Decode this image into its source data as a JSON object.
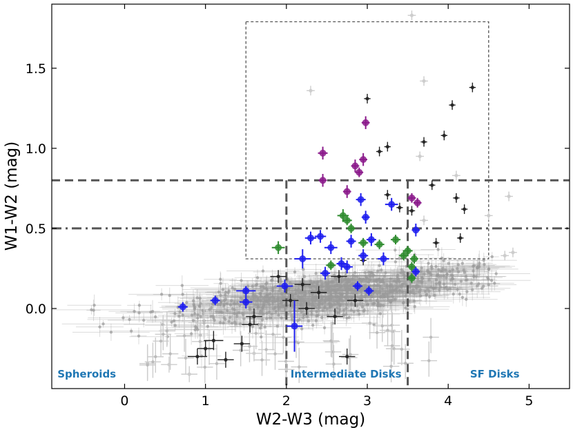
{
  "chart_data": {
    "type": "scatter",
    "title": "",
    "xlabel": "W2-W3 (mag)",
    "ylabel": "W1-W2 (mag)",
    "xlim": [
      -0.9,
      5.5
    ],
    "ylim": [
      -0.5,
      1.9
    ],
    "xticks": [
      0,
      1,
      2,
      3,
      4,
      5
    ],
    "xtick_labels": [
      "0",
      "1",
      "2",
      "3",
      "4",
      "5"
    ],
    "yticks": [
      0.0,
      0.5,
      1.0,
      1.5
    ],
    "ytick_labels": [
      "0.0",
      "0.5",
      "1.0",
      "1.5"
    ],
    "grid": false,
    "reference_lines": [
      {
        "name": "horizontal-dashed-0.8",
        "axis": "y",
        "value": 0.8,
        "style": "dashed",
        "color": "#555555"
      },
      {
        "name": "horizontal-dashdot-0.5",
        "axis": "y",
        "value": 0.5,
        "style": "dashdot",
        "color": "#555555"
      },
      {
        "name": "vertical-dashed-2.0",
        "axis": "x",
        "value": 2.0,
        "y_max": 0.8,
        "style": "dashed",
        "color": "#555555"
      },
      {
        "name": "vertical-dashed-3.5",
        "axis": "x",
        "value": 3.5,
        "y_max": 0.8,
        "style": "dashed",
        "color": "#555555"
      }
    ],
    "selection_box": {
      "x_range": [
        1.5,
        4.5
      ],
      "y_range": [
        0.31,
        1.79
      ],
      "style": "dotted",
      "color": "#555555"
    },
    "region_labels": [
      {
        "text": "Spheroids",
        "x": -0.83,
        "y": -0.43
      },
      {
        "text": "Intermediate Disks",
        "x": 2.05,
        "y": -0.43
      },
      {
        "text": "SF Disks",
        "x": 4.27,
        "y": -0.43
      }
    ],
    "region_label_color": "#1f77b4",
    "background_cloud": {
      "name": "all-galaxies",
      "color": "#9a9a9a",
      "center_x": 2.5,
      "center_y": 0.07,
      "x_range": [
        -0.5,
        4.6
      ],
      "y_range": [
        -0.15,
        0.35
      ]
    },
    "series": [
      {
        "name": "purple",
        "color": "#8b1a8b",
        "x": [
          2.45,
          2.45,
          2.75,
          2.85,
          2.9,
          2.95,
          2.98,
          3.55,
          3.62
        ],
        "y": [
          0.97,
          0.8,
          0.73,
          0.89,
          0.85,
          0.93,
          1.16,
          0.69,
          0.66
        ],
        "xerr": [
          0.06,
          0.05,
          0.05,
          0.05,
          0.05,
          0.05,
          0.05,
          0.05,
          0.05
        ],
        "yerr": [
          0.04,
          0.04,
          0.04,
          0.04,
          0.03,
          0.04,
          0.04,
          0.03,
          0.03
        ]
      },
      {
        "name": "green",
        "color": "#2e8b2e",
        "x": [
          1.9,
          2.55,
          2.7,
          2.75,
          2.8,
          2.95,
          3.15,
          3.35,
          3.45,
          3.5,
          3.55,
          3.58,
          3.55
        ],
        "y": [
          0.38,
          0.27,
          0.58,
          0.55,
          0.5,
          0.41,
          0.4,
          0.43,
          0.33,
          0.36,
          0.26,
          0.31,
          0.19
        ],
        "xerr": [
          0.08,
          0.06,
          0.07,
          0.06,
          0.05,
          0.06,
          0.06,
          0.06,
          0.06,
          0.06,
          0.05,
          0.05,
          0.05
        ],
        "yerr": [
          0.04,
          0.03,
          0.04,
          0.03,
          0.03,
          0.03,
          0.03,
          0.03,
          0.03,
          0.03,
          0.03,
          0.03,
          0.03
        ]
      },
      {
        "name": "blue",
        "color": "#1f1fef",
        "x": [
          0.72,
          1.12,
          1.5,
          1.5,
          1.98,
          2.1,
          2.2,
          2.3,
          2.42,
          2.48,
          2.55,
          2.68,
          2.75,
          2.8,
          2.88,
          2.92,
          2.95,
          2.98,
          3.02,
          3.05,
          3.2,
          3.3,
          3.6,
          3.6
        ],
        "y": [
          0.01,
          0.05,
          0.11,
          0.04,
          0.14,
          -0.11,
          0.31,
          0.44,
          0.45,
          0.22,
          0.38,
          0.28,
          0.26,
          0.42,
          0.14,
          0.68,
          0.33,
          0.57,
          0.11,
          0.43,
          0.31,
          0.65,
          0.49,
          0.23
        ],
        "xerr": [
          0.06,
          0.06,
          0.12,
          0.08,
          0.1,
          0.1,
          0.1,
          0.07,
          0.07,
          0.06,
          0.08,
          0.06,
          0.07,
          0.06,
          0.06,
          0.06,
          0.06,
          0.05,
          0.06,
          0.06,
          0.07,
          0.08,
          0.05,
          0.05
        ],
        "yerr": [
          0.03,
          0.03,
          0.03,
          0.04,
          0.04,
          0.16,
          0.06,
          0.04,
          0.04,
          0.04,
          0.04,
          0.04,
          0.04,
          0.04,
          0.03,
          0.04,
          0.04,
          0.04,
          0.03,
          0.04,
          0.04,
          0.04,
          0.04,
          0.03
        ]
      },
      {
        "name": "black",
        "color": "#222222",
        "x": [
          0.9,
          1.0,
          1.1,
          1.25,
          1.45,
          1.55,
          1.6,
          1.9,
          2.05,
          2.2,
          2.25,
          2.4,
          2.6,
          2.65,
          2.75,
          2.85,
          3.0,
          3.15,
          3.25,
          3.4,
          3.55,
          3.7,
          3.8,
          3.95,
          4.05,
          4.1,
          4.3,
          4.15,
          4.2,
          3.25,
          2.95,
          3.85
        ],
        "y": [
          -0.3,
          -0.25,
          -0.2,
          -0.32,
          -0.22,
          -0.1,
          -0.05,
          0.2,
          0.05,
          0.15,
          0.0,
          0.1,
          -0.05,
          0.2,
          -0.3,
          0.05,
          1.31,
          0.98,
          1.01,
          0.63,
          0.61,
          1.04,
          0.77,
          1.08,
          1.27,
          0.69,
          1.38,
          0.44,
          0.62,
          0.71,
          0.3,
          0.41
        ],
        "xerr": [
          0.12,
          0.1,
          0.12,
          0.1,
          0.1,
          0.1,
          0.1,
          0.1,
          0.1,
          0.1,
          0.1,
          0.1,
          0.1,
          0.1,
          0.1,
          0.1,
          0.04,
          0.04,
          0.04,
          0.04,
          0.04,
          0.04,
          0.04,
          0.04,
          0.04,
          0.04,
          0.04,
          0.04,
          0.04,
          0.04,
          0.04,
          0.04
        ],
        "yerr": [
          0.05,
          0.05,
          0.06,
          0.05,
          0.05,
          0.05,
          0.05,
          0.04,
          0.04,
          0.04,
          0.04,
          0.04,
          0.05,
          0.04,
          0.05,
          0.04,
          0.03,
          0.03,
          0.03,
          0.03,
          0.03,
          0.03,
          0.03,
          0.03,
          0.03,
          0.03,
          0.03,
          0.03,
          0.03,
          0.03,
          0.03,
          0.03
        ]
      },
      {
        "name": "light-gray-outliers",
        "color": "#cccccc",
        "x": [
          3.55,
          3.7,
          2.3,
          3.65,
          4.75,
          4.5,
          4.7,
          0.55,
          0.8,
          1.6,
          2.0,
          4.8,
          4.1,
          3.7
        ],
        "y": [
          1.83,
          1.42,
          1.36,
          0.95,
          0.7,
          0.58,
          0.33,
          -0.35,
          -0.41,
          -0.28,
          -0.38,
          0.35,
          0.83,
          0.55
        ],
        "xerr": [
          0.05,
          0.05,
          0.05,
          0.05,
          0.05,
          0.05,
          0.05,
          0.1,
          0.1,
          0.1,
          0.1,
          0.05,
          0.05,
          0.05
        ],
        "yerr": [
          0.03,
          0.03,
          0.03,
          0.03,
          0.03,
          0.03,
          0.03,
          0.05,
          0.05,
          0.05,
          0.05,
          0.03,
          0.03,
          0.03
        ]
      }
    ]
  }
}
